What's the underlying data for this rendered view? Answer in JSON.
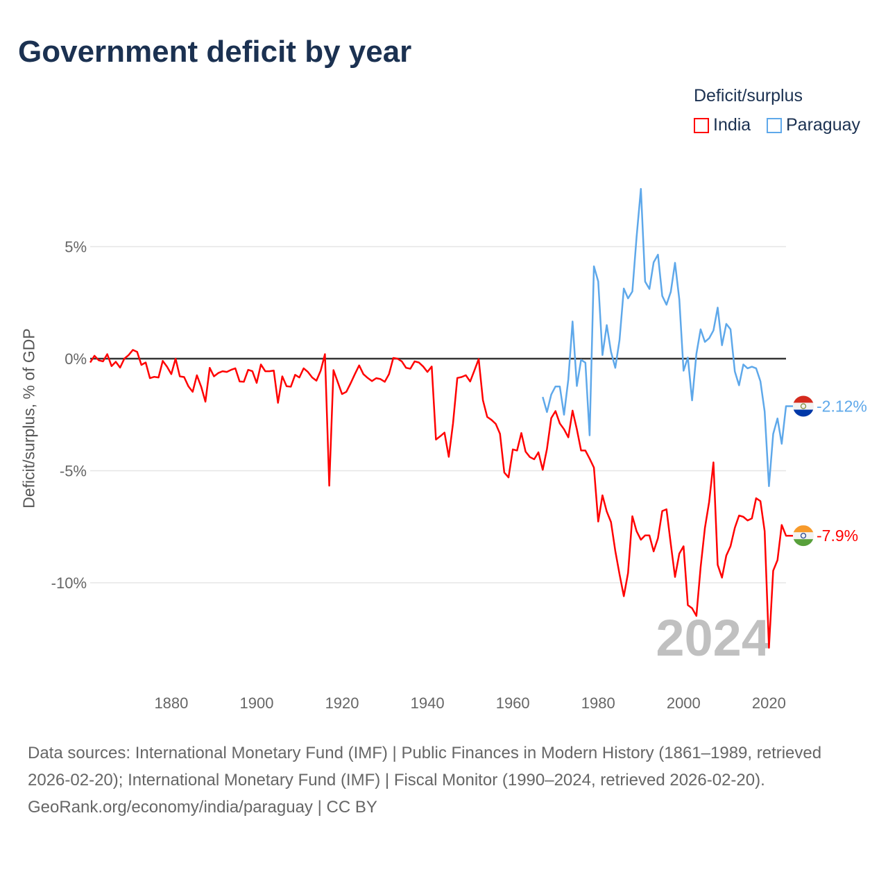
{
  "title": "Government deficit by year",
  "legend": {
    "title": "Deficit/surplus",
    "items": [
      {
        "name": "India",
        "color": "#ff0000"
      },
      {
        "name": "Paraguay",
        "color": "#5ea8ea"
      }
    ]
  },
  "chart_data": {
    "type": "line",
    "title": "Government deficit by year",
    "ylabel": "Deficit/surplus, % of GDP",
    "xlabel": "",
    "xlim": [
      1861,
      2024
    ],
    "ylim": [
      -13.5,
      8
    ],
    "x_ticks": [
      1880,
      1900,
      1920,
      1940,
      1960,
      1980,
      2000,
      2020
    ],
    "y_ticks": [
      {
        "value": 5,
        "label": "5%"
      },
      {
        "value": 0,
        "label": "0%"
      },
      {
        "value": -5,
        "label": "-5%"
      },
      {
        "value": -10,
        "label": "-10%"
      }
    ],
    "grid": true,
    "legend_position": "top-right",
    "year_watermark": "2024",
    "series": [
      {
        "name": "India",
        "color": "#ff0000",
        "start_year": 1861,
        "end_label": "-7.9%",
        "values": [
          -0.17,
          0.13,
          -0.07,
          -0.12,
          0.2,
          -0.33,
          -0.14,
          -0.4,
          0,
          0.16,
          0.39,
          0.3,
          -0.28,
          -0.17,
          -0.87,
          -0.81,
          -0.84,
          -0.1,
          -0.36,
          -0.69,
          0,
          -0.79,
          -0.82,
          -1.23,
          -1.48,
          -0.74,
          -1.25,
          -1.92,
          -0.41,
          -0.79,
          -0.64,
          -0.56,
          -0.59,
          -0.5,
          -0.43,
          -1.02,
          -1.03,
          -0.5,
          -0.56,
          -1.08,
          -0.26,
          -0.56,
          -0.56,
          -0.53,
          -1.97,
          -0.79,
          -1.23,
          -1.25,
          -0.72,
          -0.84,
          -0.43,
          -0.59,
          -0.84,
          -0.98,
          -0.53,
          0.2,
          -5.67,
          -0.51,
          -1.05,
          -1.58,
          -1.48,
          -1.1,
          -0.69,
          -0.3,
          -0.69,
          -0.86,
          -1.0,
          -0.87,
          -0.91,
          -1.03,
          -0.69,
          0.03,
          0,
          -0.12,
          -0.41,
          -0.45,
          -0.12,
          -0.17,
          -0.35,
          -0.59,
          -0.35,
          -3.61,
          -3.46,
          -3.3,
          -4.38,
          -2.89,
          -0.86,
          -0.82,
          -0.74,
          -1.02,
          -0.53,
          -0.02,
          -1.85,
          -2.6,
          -2.73,
          -2.91,
          -3.35,
          -5.08,
          -5.3,
          -4.05,
          -4.1,
          -3.32,
          -4.15,
          -4.39,
          -4.49,
          -4.18,
          -4.96,
          -4.03,
          -2.65,
          -2.34,
          -2.89,
          -3.15,
          -3.51,
          -2.32,
          -3.15,
          -4.1,
          -4.1,
          -4.46,
          -4.86,
          -7.27,
          -6.1,
          -6.82,
          -7.29,
          -8.58,
          -9.62,
          -10.6,
          -9.56,
          -7.03,
          -7.7,
          -8.08,
          -7.89,
          -7.89,
          -8.6,
          -8.01,
          -6.8,
          -6.72,
          -8.27,
          -9.74,
          -8.7,
          -8.37,
          -11.0,
          -11.14,
          -11.48,
          -9.31,
          -7.55,
          -6.39,
          -4.63,
          -9.2,
          -9.77,
          -8.79,
          -8.37,
          -7.55,
          -7.0,
          -7.06,
          -7.22,
          -7.13,
          -6.23,
          -6.36,
          -7.7,
          -12.9,
          -9.46,
          -8.99,
          -7.42,
          -7.9
        ]
      },
      {
        "name": "Paraguay",
        "color": "#5ea8ea",
        "start_year": 1967,
        "end_label": "-2.12%",
        "values": [
          -1.71,
          -2.38,
          -1.6,
          -1.24,
          -1.24,
          -2.5,
          -0.93,
          1.66,
          -1.22,
          -0.05,
          -0.18,
          -3.42,
          4.12,
          3.45,
          0.16,
          1.5,
          0.31,
          -0.41,
          0.83,
          3.13,
          2.69,
          3.0,
          5.43,
          7.58,
          3.44,
          3.11,
          4.3,
          4.64,
          2.8,
          2.41,
          2.98,
          4.28,
          2.64,
          -0.54,
          0.05,
          -1.86,
          0.21,
          1.31,
          0.75,
          0.91,
          1.26,
          2.28,
          0.6,
          1.55,
          1.31,
          -0.57,
          -1.19,
          -0.26,
          -0.43,
          -0.36,
          -0.43,
          -1.01,
          -2.36,
          -5.69,
          -3.36,
          -2.67,
          -3.8,
          -2.12
        ]
      }
    ]
  },
  "footer": {
    "sources": "Data sources: International Monetary Fund (IMF) | Public Finances in Modern History (1861–1989, retrieved 2026-02-20); International Monetary Fund (IMF) | Fiscal Monitor (1990–2024, retrieved 2026-02-20).",
    "credit": "GeoRank.org/economy/india/paraguay | CC BY"
  }
}
